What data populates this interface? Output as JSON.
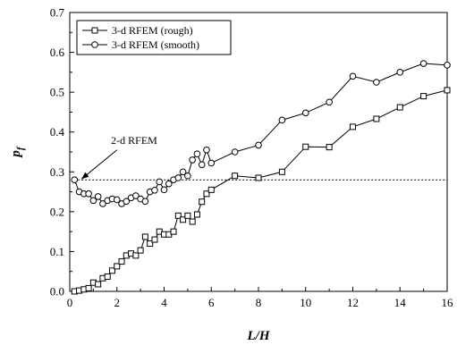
{
  "chart_data": {
    "type": "line",
    "xlabel": "L/H",
    "ylabel_main": "p",
    "ylabel_sub": "f",
    "xlim": [
      0,
      16
    ],
    "ylim": [
      0,
      0.7
    ],
    "xticks": [
      0,
      2,
      4,
      6,
      8,
      10,
      12,
      14,
      16
    ],
    "yticks": [
      0.0,
      0.1,
      0.2,
      0.3,
      0.4,
      0.5,
      0.6,
      0.7
    ],
    "xtick_labels": [
      "0",
      "2",
      "4",
      "6",
      "8",
      "10",
      "12",
      "14",
      "16"
    ],
    "ytick_labels": [
      "0.0",
      "0.1",
      "0.2",
      "0.3",
      "0.4",
      "0.5",
      "0.6",
      "0.7"
    ],
    "grid": false,
    "legend_position": "top-left",
    "series": [
      {
        "name": "3-d RFEM (rough)",
        "marker": "square",
        "x": [
          0.2,
          0.4,
          0.6,
          0.8,
          1.0,
          1.2,
          1.4,
          1.6,
          1.8,
          2.0,
          2.2,
          2.4,
          2.6,
          2.8,
          3.0,
          3.2,
          3.4,
          3.6,
          3.8,
          4.0,
          4.2,
          4.4,
          4.6,
          4.8,
          5.0,
          5.2,
          5.4,
          5.6,
          5.8,
          6.0,
          7.0,
          8.0,
          9.0,
          10.0,
          11.0,
          12.0,
          13.0,
          14.0,
          15.0,
          16.0
        ],
        "y": [
          0.0,
          0.002,
          0.005,
          0.008,
          0.022,
          0.018,
          0.033,
          0.037,
          0.052,
          0.063,
          0.075,
          0.09,
          0.095,
          0.09,
          0.103,
          0.137,
          0.12,
          0.13,
          0.15,
          0.143,
          0.143,
          0.15,
          0.19,
          0.18,
          0.19,
          0.175,
          0.193,
          0.225,
          0.245,
          0.255,
          0.29,
          0.285,
          0.3,
          0.363,
          0.362,
          0.413,
          0.433,
          0.462,
          0.49,
          0.505
        ]
      },
      {
        "name": "3-d RFEM (smooth)",
        "marker": "circle",
        "x": [
          0.2,
          0.4,
          0.6,
          0.8,
          1.0,
          1.2,
          1.4,
          1.6,
          1.8,
          2.0,
          2.2,
          2.4,
          2.6,
          2.8,
          3.0,
          3.2,
          3.4,
          3.6,
          3.8,
          4.0,
          4.2,
          4.4,
          4.6,
          4.8,
          5.0,
          5.2,
          5.4,
          5.6,
          5.8,
          6.0,
          7.0,
          8.0,
          9.0,
          10.0,
          11.0,
          12.0,
          13.0,
          14.0,
          15.0,
          16.0
        ],
        "y": [
          0.28,
          0.25,
          0.245,
          0.245,
          0.228,
          0.238,
          0.22,
          0.228,
          0.232,
          0.23,
          0.22,
          0.226,
          0.235,
          0.24,
          0.232,
          0.226,
          0.25,
          0.254,
          0.275,
          0.255,
          0.27,
          0.28,
          0.285,
          0.3,
          0.29,
          0.33,
          0.345,
          0.318,
          0.355,
          0.322,
          0.35,
          0.367,
          0.43,
          0.448,
          0.475,
          0.54,
          0.525,
          0.55,
          0.572,
          0.568
        ]
      }
    ],
    "reference_line": {
      "y": 0.28,
      "style": "dashed",
      "label": "2-d RFEM"
    },
    "annotation": {
      "text": "2-d RFEM",
      "arrow_from": [
        2.0,
        0.355
      ],
      "arrow_to": [
        0.5,
        0.282
      ]
    }
  }
}
